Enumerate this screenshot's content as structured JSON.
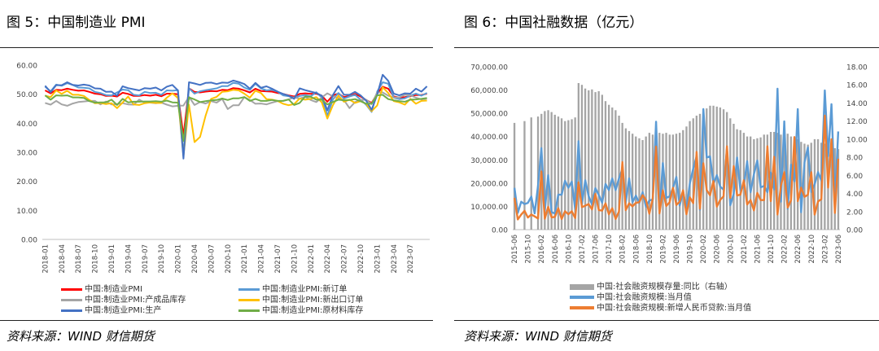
{
  "left": {
    "title": "图 5：中国制造业 PMI",
    "source": "资料来源：WIND  财信期货",
    "chart_data": {
      "type": "line",
      "yticks": [
        "60.00",
        "50.00",
        "40.00",
        "30.00",
        "20.00",
        "10.00",
        "0.00"
      ],
      "ylim": [
        0,
        60
      ],
      "xticks": [
        "2018-01",
        "2018-04",
        "2018-07",
        "2018-10",
        "2019-01",
        "2019-04",
        "2019-07",
        "2019-10",
        "2020-01",
        "2020-04",
        "2020-07",
        "2020-10",
        "2021-01",
        "2021-04",
        "2021-07",
        "2021-10",
        "2022-01",
        "2022-04",
        "2022-07",
        "2022-10",
        "2023-01",
        "2023-04",
        "2023-07"
      ],
      "x_start": "2018-01",
      "n_months": 70,
      "series": [
        {
          "name": "中国:制造业PMI",
          "color": "#ff0000",
          "values": [
            51.3,
            50.3,
            51.5,
            51.4,
            51.9,
            51.5,
            51.2,
            51.3,
            50.8,
            50.2,
            50.0,
            49.4,
            49.5,
            49.2,
            50.5,
            50.1,
            49.4,
            49.4,
            49.7,
            49.5,
            49.8,
            49.3,
            50.2,
            50.2,
            50.0,
            35.7,
            52.0,
            50.8,
            50.6,
            50.9,
            51.1,
            51.0,
            51.5,
            51.4,
            52.1,
            51.9,
            51.3,
            50.6,
            51.9,
            51.1,
            51.0,
            50.9,
            50.4,
            50.1,
            49.6,
            49.2,
            50.1,
            50.3,
            50.1,
            50.2,
            49.5,
            47.4,
            49.6,
            50.2,
            49.0,
            49.4,
            50.1,
            49.2,
            48.0,
            47.0,
            50.1,
            52.6,
            51.9,
            49.2,
            48.8,
            49.0,
            49.3,
            49.7,
            49.7,
            50.2
          ]
        },
        {
          "name": "中国:制造业PMI:新订单",
          "color": "#5b9bd5",
          "values": [
            52.6,
            51.0,
            53.3,
            52.9,
            53.8,
            53.2,
            52.3,
            52.2,
            52.0,
            50.8,
            50.4,
            49.7,
            49.6,
            50.6,
            51.6,
            51.4,
            49.8,
            49.6,
            50.8,
            50.4,
            50.5,
            49.8,
            51.3,
            51.2,
            51.4,
            29.3,
            52.0,
            50.2,
            51.0,
            51.4,
            51.7,
            52.0,
            52.8,
            52.8,
            53.9,
            53.6,
            52.3,
            51.5,
            53.6,
            52.0,
            51.3,
            51.5,
            50.9,
            49.6,
            49.3,
            48.8,
            49.4,
            49.7,
            49.3,
            50.7,
            48.8,
            42.6,
            48.2,
            50.4,
            48.5,
            49.2,
            49.8,
            48.1,
            46.4,
            43.9,
            50.9,
            54.1,
            53.6,
            48.8,
            48.3,
            48.6,
            49.5,
            50.2,
            49.5,
            50.4
          ]
        },
        {
          "name": "中国:制造业PMI:产成品库存",
          "color": "#a5a5a5",
          "values": [
            47.0,
            46.4,
            47.7,
            46.5,
            46.0,
            46.8,
            47.3,
            47.5,
            47.7,
            47.7,
            46.5,
            47.5,
            46.5,
            46.6,
            46.9,
            46.5,
            46.4,
            48.1,
            47.1,
            47.1,
            46.9,
            47.1,
            46.4,
            45.8,
            46.0,
            46.1,
            49.1,
            46.3,
            47.3,
            46.8,
            47.6,
            47.1,
            48.4,
            44.9,
            46.2,
            46.2,
            49.0,
            48.0,
            46.7,
            46.8,
            46.5,
            47.1,
            47.6,
            47.7,
            48.2,
            48.9,
            48.5,
            49.1,
            48.0,
            47.3,
            48.9,
            50.3,
            49.3,
            48.6,
            48.0,
            45.2,
            47.3,
            48.0,
            48.1,
            46.6,
            50.6,
            50.6,
            49.5,
            48.9,
            48.9,
            49.8,
            49.6,
            48.8,
            48.2,
            48.5
          ]
        },
        {
          "name": "中国:制造业PMI:新出口订单",
          "color": "#ffc000",
          "values": [
            49.5,
            49.0,
            51.3,
            50.1,
            51.2,
            49.8,
            49.8,
            49.4,
            48.0,
            46.9,
            47.0,
            46.6,
            46.9,
            45.2,
            47.1,
            49.2,
            46.5,
            46.3,
            46.9,
            47.2,
            47.0,
            47.0,
            48.8,
            50.3,
            48.7,
            28.7,
            46.4,
            33.5,
            35.3,
            42.6,
            48.4,
            49.1,
            50.8,
            51.0,
            51.5,
            51.3,
            50.2,
            48.8,
            51.2,
            50.4,
            48.3,
            48.1,
            47.7,
            46.7,
            46.2,
            46.6,
            48.5,
            48.1,
            48.4,
            49.0,
            47.2,
            41.6,
            46.2,
            49.5,
            47.4,
            48.1,
            47.0,
            47.6,
            46.7,
            44.2,
            46.1,
            52.4,
            50.4,
            47.6,
            47.2,
            46.4,
            48.4,
            46.7,
            47.7,
            47.8
          ]
        },
        {
          "name": "中国:制造业PMI:生产",
          "color": "#4472c4",
          "values": [
            52.9,
            50.7,
            53.1,
            53.1,
            54.1,
            53.2,
            53.0,
            53.3,
            53.0,
            52.0,
            51.9,
            50.8,
            50.9,
            49.5,
            52.7,
            52.1,
            51.7,
            51.3,
            52.1,
            51.9,
            52.3,
            51.3,
            52.6,
            53.2,
            51.3,
            27.8,
            54.1,
            53.7,
            53.2,
            53.9,
            54.0,
            53.5,
            54.0,
            53.9,
            54.7,
            54.2,
            53.5,
            51.9,
            53.9,
            52.2,
            52.7,
            51.9,
            50.9,
            50.1,
            49.5,
            48.4,
            52.0,
            51.4,
            50.9,
            50.4,
            49.5,
            44.4,
            49.7,
            52.8,
            49.8,
            49.8,
            50.8,
            49.6,
            47.8,
            44.6,
            49.8,
            56.7,
            54.6,
            50.2,
            49.6,
            50.3,
            50.2,
            51.9,
            50.9,
            52.7
          ]
        },
        {
          "name": "中国:制造业PMI:原材料库存",
          "color": "#70ad47",
          "values": [
            49.6,
            48.1,
            49.6,
            49.5,
            49.6,
            48.9,
            48.9,
            48.7,
            47.6,
            47.1,
            47.2,
            47.2,
            48.1,
            46.3,
            48.4,
            47.2,
            47.4,
            47.4,
            47.5,
            47.5,
            47.6,
            47.4,
            47.8,
            47.2,
            47.1,
            33.9,
            48.9,
            48.2,
            47.3,
            47.6,
            47.9,
            48.0,
            48.5,
            48.0,
            48.6,
            48.6,
            49.0,
            47.7,
            48.4,
            47.7,
            47.7,
            48.0,
            47.7,
            47.7,
            48.2,
            46.3,
            47.0,
            49.2,
            49.1,
            48.1,
            48.1,
            46.5,
            47.3,
            48.1,
            47.9,
            48.0,
            48.3,
            47.6,
            46.7,
            46.7,
            49.6,
            49.8,
            48.3,
            47.9,
            47.6,
            47.4,
            48.1,
            48.2,
            48.4,
            48.7
          ]
        }
      ]
    }
  },
  "right": {
    "title": "图 6：中国社融数据（亿元）",
    "source": "资料来源：WIND  财信期货",
    "chart_data": {
      "type": "bar",
      "y1ticks": [
        "70,000.00",
        "60,000.00",
        "50,000.00",
        "40,000.00",
        "30,000.00",
        "20,000.00",
        "10,000.00",
        "0.00"
      ],
      "y1lim": [
        0,
        70000
      ],
      "y2ticks": [
        "18.00",
        "16.00",
        "14.00",
        "12.00",
        "10.00",
        "8.00",
        "6.00",
        "4.00",
        "2.00",
        "0.00"
      ],
      "y2lim": [
        0,
        18
      ],
      "xticks": [
        "2015-06",
        "2015-10",
        "2016-02",
        "2016-06",
        "2016-10",
        "2017-02",
        "2017-06",
        "2017-10",
        "2018-02",
        "2018-06",
        "2018-10",
        "2019-02",
        "2019-06",
        "2019-10",
        "2020-02",
        "2020-06",
        "2020-10",
        "2021-02",
        "2021-06",
        "2021-10",
        "2022-02",
        "2022-06",
        "2022-10",
        "2023-02",
        "2023-06"
      ],
      "x_start": "2015-06",
      "n_months": 97,
      "series": [
        {
          "name": "中国:社会融资规模存量:同比（右轴）",
          "color": "#a5a5a5",
          "kind": "bar",
          "values": [
            11.8,
            0,
            0,
            12.0,
            0,
            12.4,
            0,
            12.5,
            12.8,
            13.1,
            13.2,
            13.0,
            12.7,
            12.5,
            12.3,
            12.0,
            12.1,
            12.2,
            12.4,
            16.2,
            16.0,
            15.6,
            15.4,
            15.5,
            15.2,
            15.3,
            14.9,
            14.2,
            13.8,
            13.5,
            13.2,
            12.6,
            11.8,
            11.2,
            10.9,
            10.6,
            10.3,
            10.1,
            9.9,
            10.3,
            10.7,
            10.5,
            10.8,
            10.7,
            10.6,
            10.7,
            10.5,
            10.5,
            10.6,
            10.7,
            11.0,
            11.4,
            12.0,
            12.3,
            12.6,
            12.8,
            13.1,
            13.4,
            13.7,
            13.7,
            13.6,
            13.5,
            13.3,
            13.0,
            12.3,
            11.7,
            11.1,
            11.0,
            10.7,
            10.3,
            10.3,
            10.0,
            10.1,
            10.2,
            10.5,
            10.5,
            10.8,
            10.8,
            10.7,
            10.5,
            10.5,
            10.6,
            10.3,
            10.2,
            10.0,
            9.7,
            9.5,
            9.4,
            9.6,
            10.0,
            10.0,
            9.6,
            9.5,
            9.5,
            9.0,
            9.0,
            8.9
          ]
        },
        {
          "name": "中国:社会融资规模:当月值",
          "color": "#5b9bd5",
          "kind": "line",
          "values": [
            18000,
            7200,
            12000,
            11000,
            11500,
            14200,
            7000,
            19000,
            35000,
            8200,
            23400,
            7600,
            6900,
            15000,
            15000,
            21000,
            18000,
            20600,
            8800,
            38000,
            11000,
            21200,
            14500,
            10800,
            17800,
            14900,
            11600,
            19600,
            17000,
            22000,
            17000,
            22000,
            26000,
            11800,
            22000,
            11800,
            14600,
            11400,
            16100,
            9800,
            12500,
            13000,
            46400,
            7000,
            28600,
            13600,
            14300,
            17900,
            22600,
            10400,
            16300,
            8700,
            19900,
            26200,
            31500,
            8600,
            51800,
            31000,
            31500,
            19600,
            23400,
            18500,
            17200,
            34800,
            10500,
            15400,
            31000,
            17000,
            18600,
            29400,
            16100,
            23800,
            29700,
            18200,
            18800,
            16100,
            24500,
            17300,
            60600,
            12000,
            46500,
            9000,
            27900,
            20800,
            51800,
            7500,
            29000,
            35300,
            16200,
            19500,
            24700,
            21100,
            59800,
            31600,
            53900,
            12200,
            42200
          ]
        },
        {
          "name": "中国:社会融资规模:新增人民币贷款:当月值",
          "color": "#ed7d31",
          "kind": "line",
          "values": [
            13700,
            4400,
            6500,
            8100,
            5200,
            6500,
            5700,
            4800,
            25000,
            4700,
            9800,
            5300,
            5500,
            9200,
            4600,
            7900,
            6600,
            7900,
            5000,
            20300,
            9700,
            10300,
            11000,
            8700,
            15400,
            8400,
            8200,
            11300,
            6600,
            9200,
            4600,
            7800,
            29000,
            8400,
            11300,
            10000,
            11500,
            11800,
            14800,
            12700,
            6900,
            13200,
            35700,
            7000,
            16900,
            10200,
            11800,
            18000,
            10600,
            12000,
            16900,
            6600,
            13900,
            11400,
            33400,
            9000,
            28500,
            17000,
            14800,
            20900,
            9900,
            12800,
            14300,
            35800,
            13600,
            27300,
            14700,
            15000,
            21200,
            10800,
            12700,
            8300,
            15800,
            12700,
            12700,
            35800,
            12300,
            31300,
            6500,
            18900,
            24700,
            9500,
            12600,
            39800,
            12300,
            18100,
            14100,
            15000,
            24700,
            6500,
            12100,
            13100,
            49000,
            18100,
            38900,
            7200,
            30500
          ]
        }
      ]
    }
  }
}
